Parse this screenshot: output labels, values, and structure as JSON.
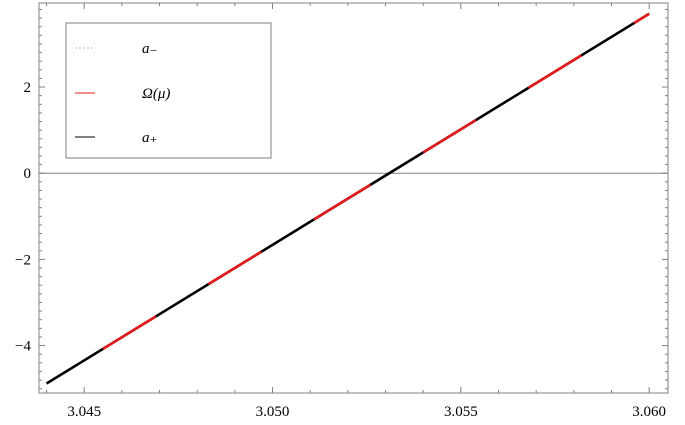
{
  "chart_data": {
    "type": "line",
    "title": "",
    "xlabel": "",
    "ylabel": "",
    "xlim": [
      3.0438,
      3.0605
    ],
    "ylim": [
      -5.1,
      3.95
    ],
    "x_ticks": [
      3.045,
      3.05,
      3.055,
      3.06
    ],
    "x_tick_labels": [
      "3.045",
      "3.050",
      "3.055",
      "3.060"
    ],
    "y_ticks": [
      -4,
      -2,
      0,
      2
    ],
    "y_tick_labels": [
      "−4",
      "−2",
      "0",
      "2"
    ],
    "zero_line": true,
    "grid": false,
    "legend": {
      "placement": "top-left",
      "entries": [
        {
          "name": "a₋",
          "color": "#bdbdbd",
          "dash": "dashed"
        },
        {
          "name": "Ω(μ)",
          "color": "#e31a1c",
          "dash": "solid"
        },
        {
          "name": "a₊",
          "color": "#000000",
          "dash": "solid"
        }
      ]
    },
    "series": [
      {
        "name": "a₋",
        "color": "#bdbdbd",
        "x": [
          3.044,
          3.06
        ],
        "y": [
          -4.88,
          3.7
        ]
      },
      {
        "name": "a₊",
        "color": "#000000",
        "x": [
          3.044,
          3.06
        ],
        "y": [
          -4.88,
          3.7
        ]
      },
      {
        "name": "Ω(μ)",
        "color": "#e31a1c",
        "x": [
          3.044,
          3.06
        ],
        "y": [
          -4.88,
          3.7
        ],
        "segments": [
          [
            3.0455,
            3.0469
          ],
          [
            3.0483,
            3.0497
          ],
          [
            3.0511,
            3.0526
          ],
          [
            3.054,
            3.0554
          ],
          [
            3.0568,
            3.0582
          ],
          [
            3.0596,
            3.06
          ]
        ]
      }
    ]
  }
}
